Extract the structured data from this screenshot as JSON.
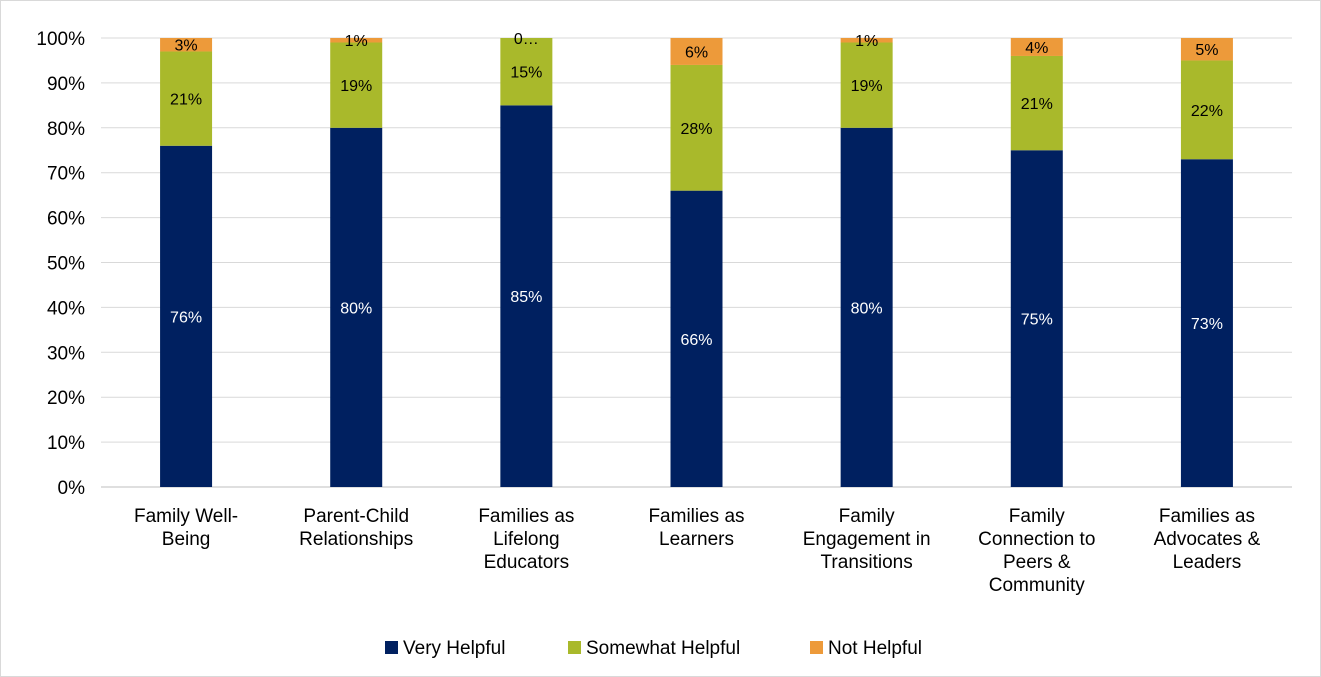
{
  "chart_data": {
    "type": "bar",
    "stacked": true,
    "categories": [
      [
        "Family Well-",
        "Being"
      ],
      [
        "Parent-Child",
        "Relationships"
      ],
      [
        "Families as",
        "Lifelong",
        "Educators"
      ],
      [
        "Families as",
        "Learners"
      ],
      [
        "Family",
        "Engagement in",
        "Transitions"
      ],
      [
        "Family",
        "Connection to",
        "Peers &",
        "Community"
      ],
      [
        "Families as",
        "Advocates &",
        "Leaders"
      ]
    ],
    "series": [
      {
        "name": "Very Helpful",
        "color": "#002060",
        "label_color": "#ffffff",
        "values": [
          76,
          80,
          85,
          66,
          80,
          75,
          73
        ],
        "labels": [
          "76%",
          "80%",
          "85%",
          "66%",
          "80%",
          "75%",
          "73%"
        ]
      },
      {
        "name": "Somewhat Helpful",
        "color": "#a9b92b",
        "label_color": "#000000",
        "values": [
          21,
          19,
          15,
          28,
          19,
          21,
          22
        ],
        "labels": [
          "21%",
          "19%",
          "15%",
          "28%",
          "19%",
          "21%",
          "22%"
        ]
      },
      {
        "name": "Not Helpful",
        "color": "#ed9a3a",
        "label_color": "#000000",
        "values": [
          3,
          1,
          0,
          6,
          1,
          4,
          5
        ],
        "labels": [
          "3%",
          "1%",
          "0…",
          "6%",
          "1%",
          "4%",
          "5%"
        ]
      }
    ],
    "ylim": [
      0,
      100
    ],
    "yticks": [
      "0%",
      "10%",
      "20%",
      "30%",
      "40%",
      "50%",
      "60%",
      "70%",
      "80%",
      "90%",
      "100%"
    ],
    "grid": true,
    "legend": "bottom"
  }
}
